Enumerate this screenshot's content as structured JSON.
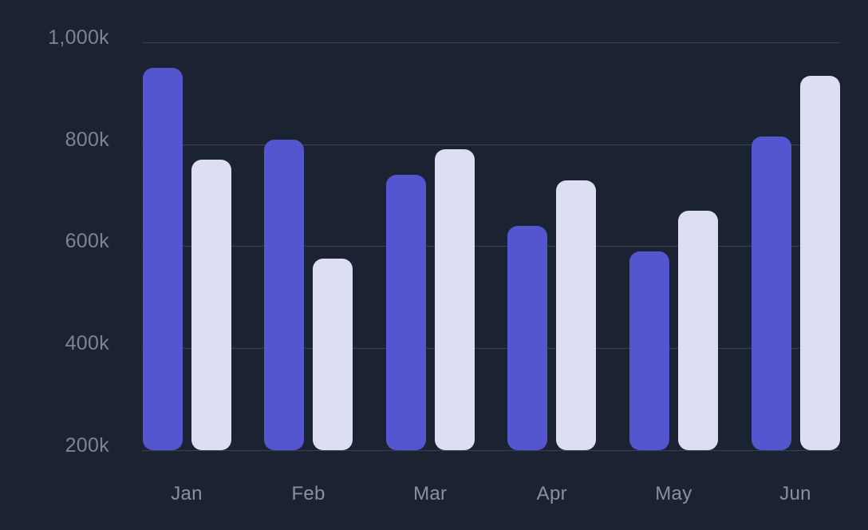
{
  "chart_data": {
    "type": "bar",
    "title": "",
    "xlabel": "",
    "ylabel": "",
    "categories": [
      "Jan",
      "Feb",
      "Mar",
      "Apr",
      "May",
      "Jun"
    ],
    "series": [
      {
        "color": "#5456d0",
        "values": [
          950,
          810,
          740,
          640,
          590,
          815
        ]
      },
      {
        "color": "#dddef3",
        "values": [
          770,
          575,
          790,
          730,
          670,
          935
        ]
      }
    ],
    "unit": "k",
    "ylim": [
      200,
      1000
    ],
    "yticks": [
      200,
      400,
      600,
      800,
      1000
    ],
    "ytick_labels": [
      "200k",
      "400k",
      "600k",
      "800k",
      "1,000k"
    ],
    "grid": true,
    "legend": false,
    "colors": {
      "background": "#1b2232",
      "gridline": "#39404f",
      "ytick_text": "#7d8490",
      "xtick_text": "#8a919d"
    }
  }
}
